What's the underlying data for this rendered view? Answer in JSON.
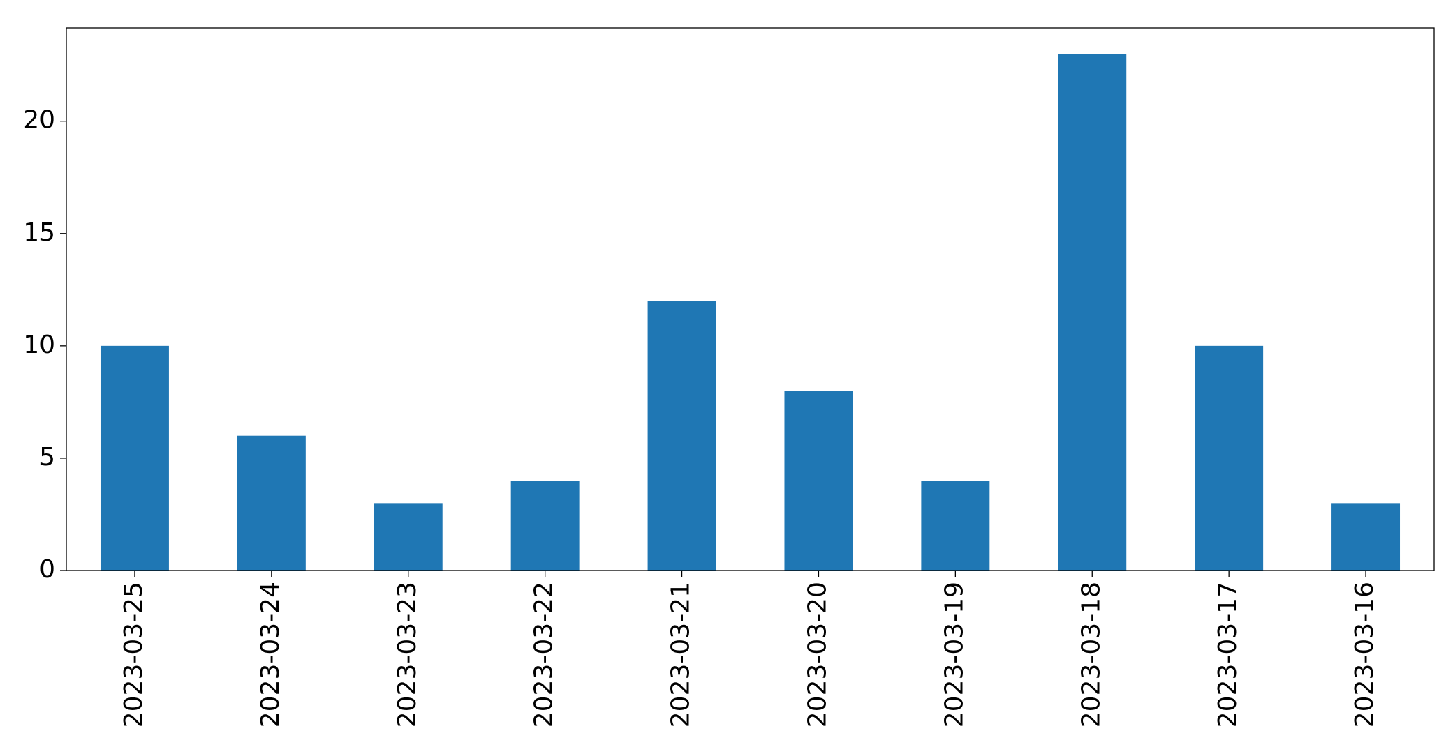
{
  "chart_data": {
    "type": "bar",
    "categories": [
      "2023-03-25",
      "2023-03-24",
      "2023-03-23",
      "2023-03-22",
      "2023-03-21",
      "2023-03-20",
      "2023-03-19",
      "2023-03-18",
      "2023-03-17",
      "2023-03-16"
    ],
    "values": [
      10,
      6,
      3,
      4,
      12,
      8,
      4,
      23,
      10,
      3
    ],
    "color": "#1f77b4",
    "ylim": [
      0,
      24.15
    ],
    "yticks": [
      0,
      5,
      10,
      15,
      20
    ],
    "grid": false
  }
}
